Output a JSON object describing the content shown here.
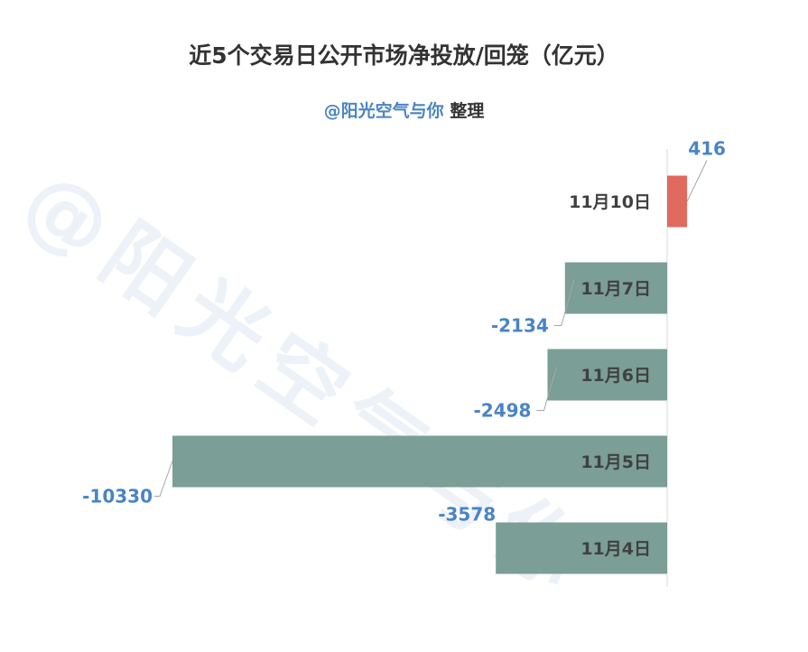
{
  "colors": {
    "positive": "#e06a5e",
    "negative": "#7b9e96",
    "value_label": "#4a84c4",
    "leader": "#a6a6a6",
    "axis": "#d9d9d9"
  },
  "subtitle": {
    "handle": "@阳光空气与你",
    "note": "整理"
  },
  "watermark": "@阳光空气与你",
  "chart_data": {
    "type": "bar",
    "orientation": "horizontal",
    "title": "近5个交易日公开市场净投放/回笼（亿元）",
    "categories": [
      "11月10日",
      "11月7日",
      "11月6日",
      "11月5日",
      "11月4日"
    ],
    "values": [
      416,
      -2134,
      -2498,
      -10330,
      -3578
    ],
    "xlim": [
      -10330,
      416
    ],
    "grid": false,
    "legend": "none"
  }
}
